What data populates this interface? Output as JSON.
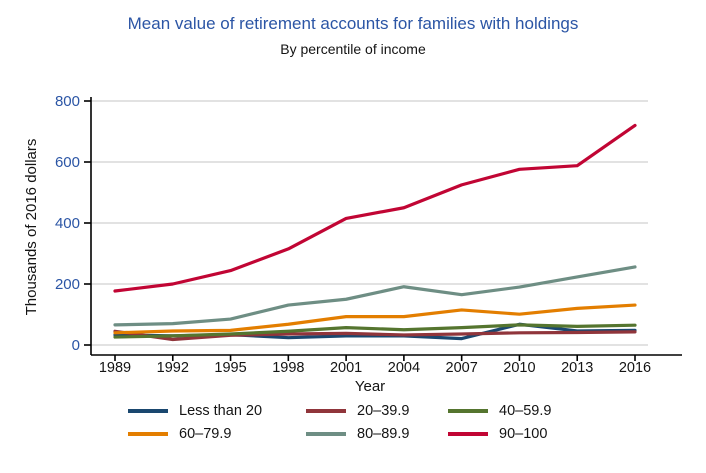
{
  "title": "Mean value of retirement accounts for families with holdings",
  "subtitle": "By percentile of income",
  "chart_data": {
    "type": "line",
    "x": [
      1989,
      1992,
      1995,
      1998,
      2001,
      2004,
      2007,
      2010,
      2013,
      2016
    ],
    "series": [
      {
        "name": "Less than 20",
        "color": "#1a476f",
        "values": [
          33,
          30,
          34,
          24,
          30,
          30,
          21,
          68,
          46,
          48
        ]
      },
      {
        "name": "20–39.9",
        "color": "#90353b",
        "values": [
          45,
          18,
          32,
          36,
          38,
          33,
          36,
          40,
          41,
          43
        ]
      },
      {
        "name": "40–59.9",
        "color": "#55752f",
        "values": [
          26,
          30,
          36,
          45,
          57,
          50,
          57,
          66,
          61,
          65
        ]
      },
      {
        "name": "60–79.9",
        "color": "#e37e00",
        "values": [
          40,
          46,
          48,
          68,
          93,
          93,
          115,
          101,
          120,
          131
        ]
      },
      {
        "name": "80–89.9",
        "color": "#6e8e84",
        "values": [
          66,
          70,
          85,
          131,
          150,
          191,
          165,
          190,
          223,
          256
        ]
      },
      {
        "name": "90–100",
        "color": "#c10534",
        "values": [
          177,
          200,
          244,
          315,
          415,
          450,
          525,
          576,
          588,
          720
        ]
      }
    ],
    "xlabel": "Year",
    "ylabel": "Thousands of 2016 dollars",
    "ylim": [
      0,
      800
    ],
    "yticks": [
      0,
      200,
      400,
      600,
      800
    ],
    "grid": "horizontal-only",
    "legend_position": "bottom"
  },
  "colors": {
    "title_text": "#2b55a5",
    "y_tick_text": "#2b55a5",
    "x_tick_text": "#141414",
    "body_text": "#141414",
    "gridline": "#d1d1d1",
    "axis_line": "#000000",
    "background": "#ffffff"
  }
}
